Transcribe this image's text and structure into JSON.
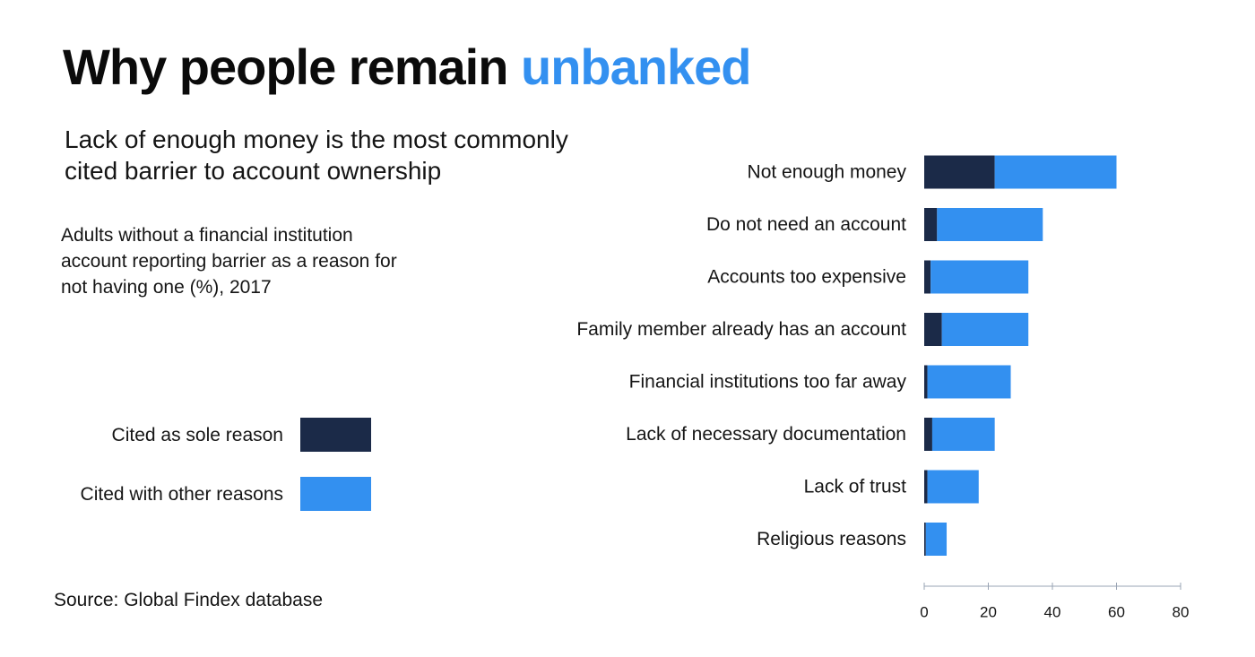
{
  "title": {
    "prefix": "Why people remain",
    "highlight": "unbanked"
  },
  "subtitle": "Lack of enough money is the most commonly cited barrier to account ownership",
  "description": "Adults without a financial institution account reporting barrier as a reason for not having one (%), 2017",
  "legend": {
    "sole": "Cited as sole reason",
    "other": "Cited with other reasons"
  },
  "source": "Source: Global Findex database",
  "colors": {
    "sole": "#1b2a48",
    "other": "#3390f0",
    "axis": "#9aa4b4",
    "accent": "#3390f0"
  },
  "chart_data": {
    "type": "bar",
    "orientation": "horizontal",
    "stacked": true,
    "categories": [
      "Not enough money",
      "Do not need an account",
      "Accounts too expensive",
      "Family member already has an account",
      "Financial institutions too far away",
      "Lack of necessary documentation",
      "Lack of trust",
      "Religious reasons"
    ],
    "series": [
      {
        "name": "Cited as sole reason",
        "values": [
          22,
          4,
          2,
          5.5,
          1,
          2.5,
          1,
          0.5
        ]
      },
      {
        "name": "Cited with other reasons",
        "values": [
          38,
          33,
          30.5,
          27,
          26,
          19.5,
          16,
          6.5
        ]
      }
    ],
    "xlim": [
      0,
      80
    ],
    "xticks": [
      "0",
      "20",
      "40",
      "60",
      "80"
    ],
    "grid": false,
    "legend_position": "left"
  }
}
